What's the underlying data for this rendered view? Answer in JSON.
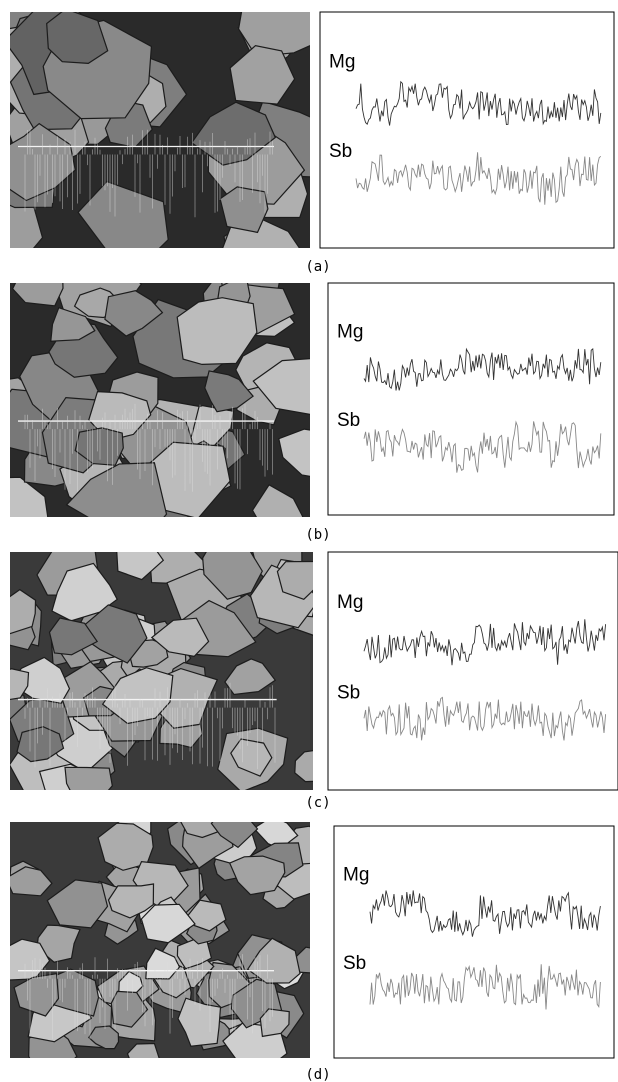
{
  "panels": [
    {
      "label": "(a)",
      "elements": [
        "Mg",
        "Sb"
      ]
    },
    {
      "label": "(b)",
      "elements": [
        "Mg",
        "Sb"
      ]
    },
    {
      "label": "(c)",
      "elements": [
        "Mg",
        "Sb"
      ]
    },
    {
      "label": "(d)",
      "elements": [
        "Mg",
        "Sb"
      ]
    }
  ]
}
